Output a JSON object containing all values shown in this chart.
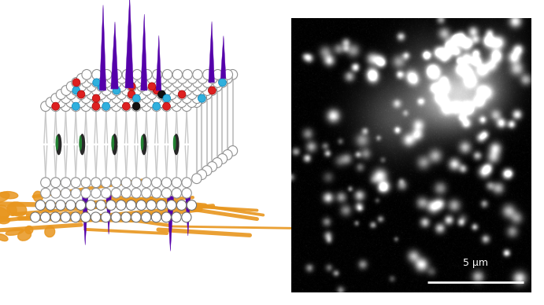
{
  "background_color": "#ffffff",
  "right_panel_bg": "#000000",
  "scale_bar_text": "5 μm",
  "lipid_fill": "#ffffff",
  "lipid_edge": "#888888",
  "lipid_edge2": "#aaaaaa",
  "red_dot": "#dd2020",
  "cyan_dot": "#30b0dd",
  "black_dot": "#111111",
  "purple_spike": "#5500aa",
  "green_rod": "#228833",
  "black_rod": "#111111",
  "orange_fiber": "#e8961e",
  "figsize": [
    6.91,
    3.88
  ],
  "dpi": 100
}
